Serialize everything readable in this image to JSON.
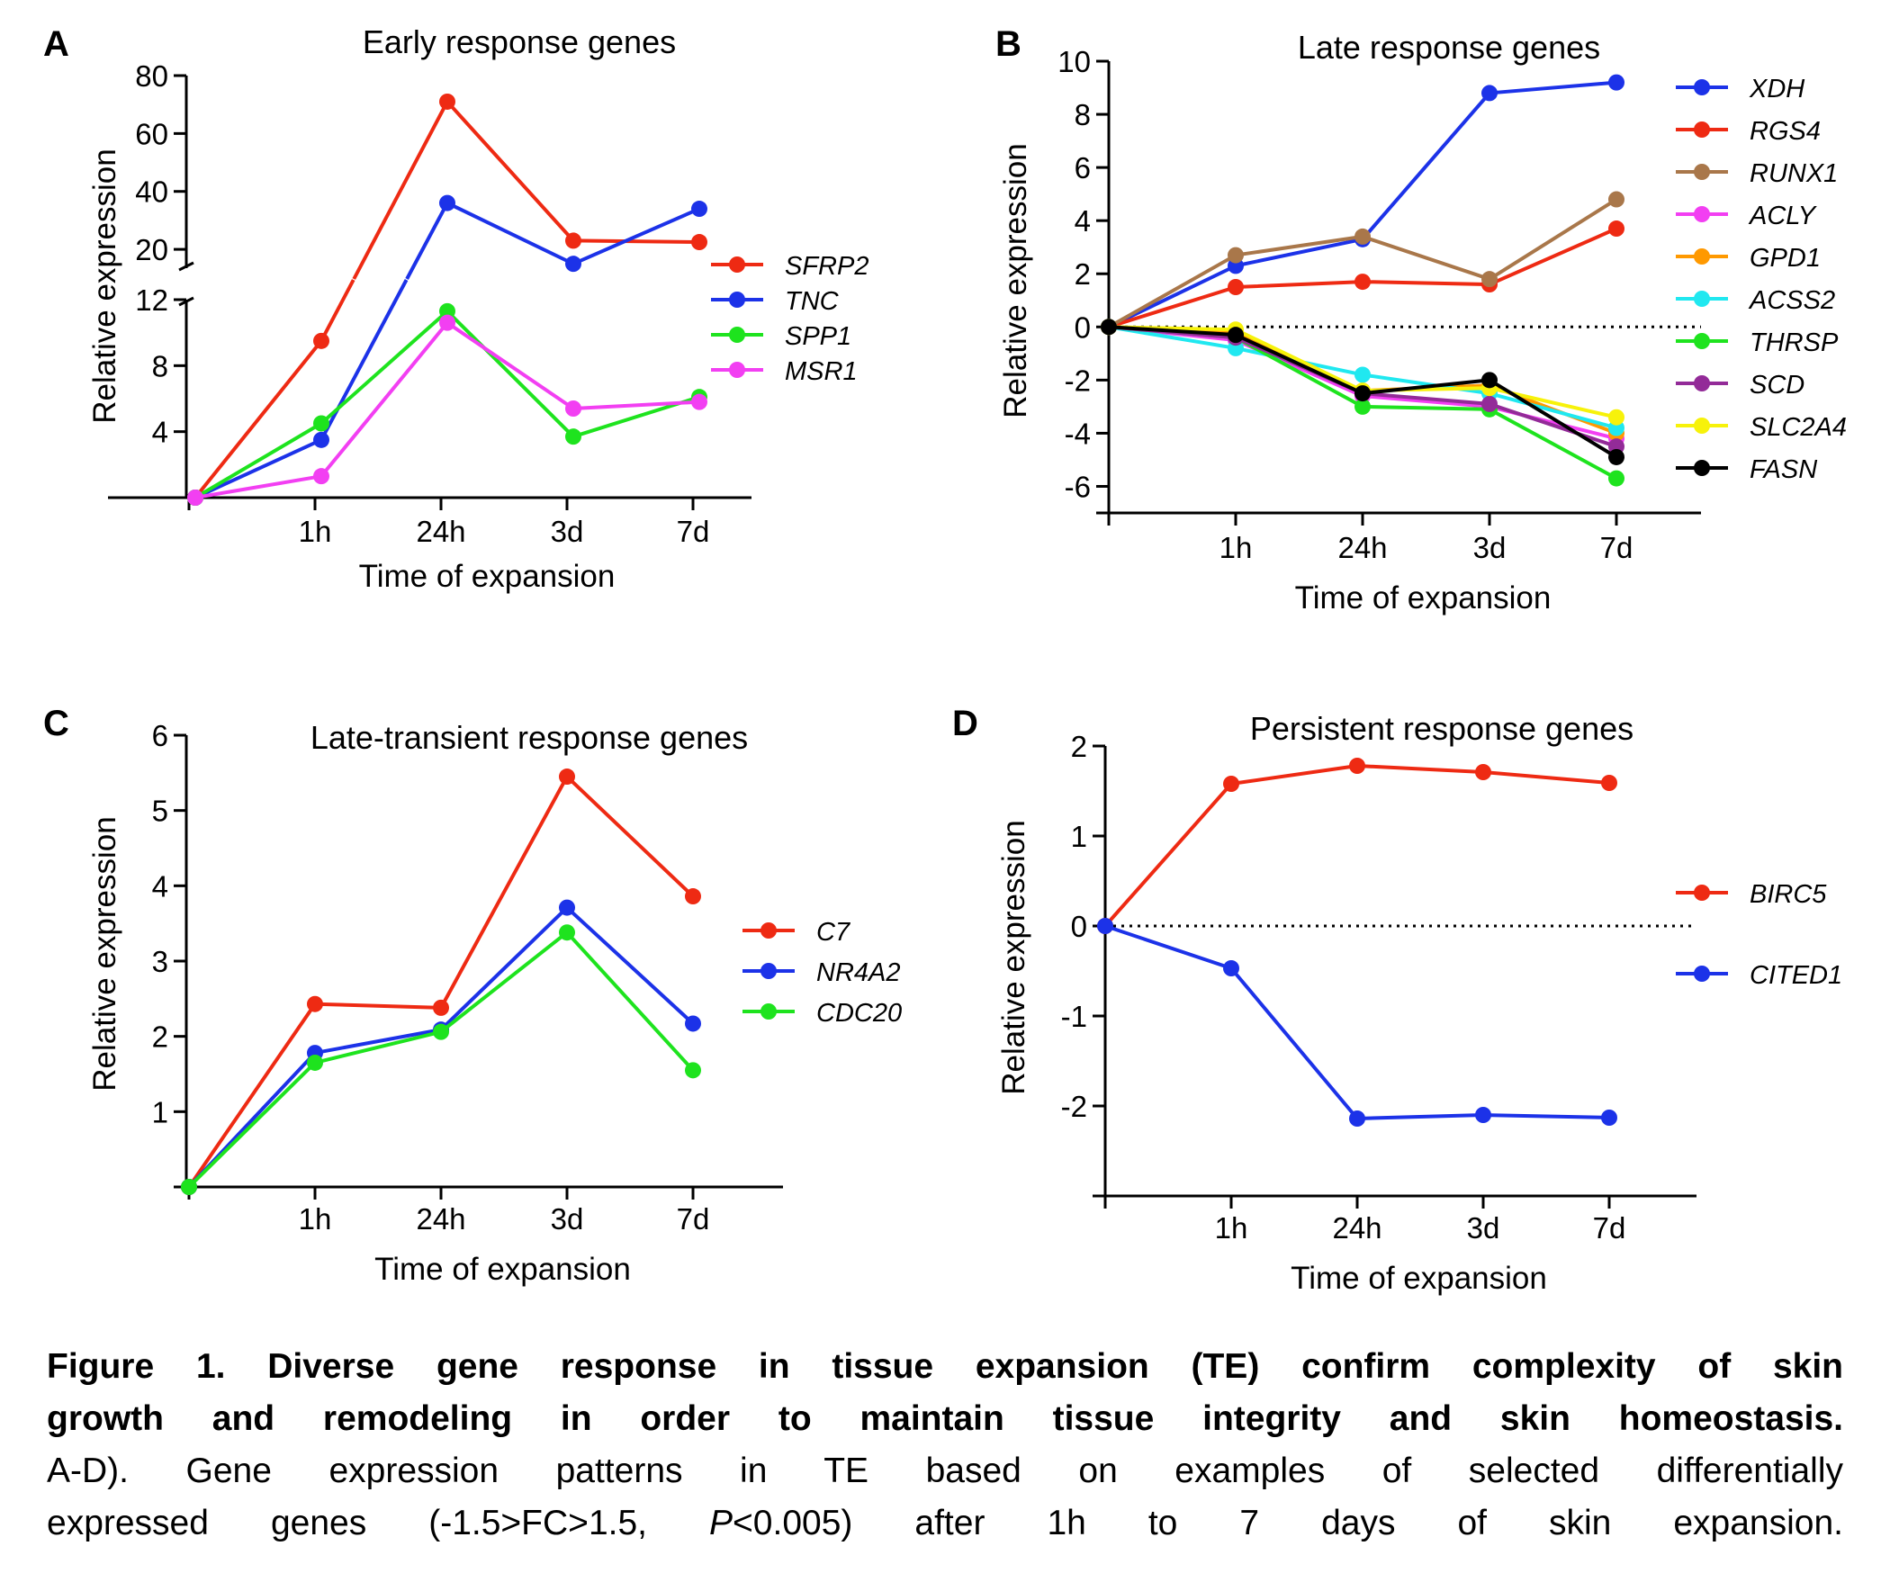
{
  "chart_data": [
    {
      "panel_label": "A",
      "type": "line",
      "title": "Early response genes",
      "xlabel": "Time of expansion",
      "ylabel": "Relative expression",
      "categories": [
        "",
        "1h",
        "24h",
        "3d",
        "7d"
      ],
      "broken_axis": true,
      "ylim_lower": [
        0,
        12
      ],
      "ylim_upper": [
        15,
        80
      ],
      "yticks_lower": [
        "4",
        "8",
        "12"
      ],
      "yticks_upper": [
        "20",
        "40",
        "60",
        "80"
      ],
      "legend_position": "right",
      "series": [
        {
          "name": "SFRP2",
          "color": "#ee2a13",
          "values": [
            0,
            9.5,
            71,
            23,
            22.5
          ],
          "break_gap": [
            1,
            2
          ]
        },
        {
          "name": "TNC",
          "color": "#1c32e8",
          "values": [
            0,
            3.5,
            36,
            15,
            34
          ],
          "break_gap": [
            1,
            2
          ]
        },
        {
          "name": "SPP1",
          "color": "#1ee31e",
          "values": [
            0,
            4.5,
            11.3,
            3.7,
            6.1
          ]
        },
        {
          "name": "MSR1",
          "color": "#f23ff2",
          "values": [
            0,
            1.3,
            10.6,
            5.4,
            5.8
          ]
        }
      ]
    },
    {
      "panel_label": "B",
      "type": "line",
      "title": "Late response genes",
      "xlabel": "Time of expansion",
      "ylabel": "Relative expression",
      "categories": [
        "",
        "1h",
        "24h",
        "3d",
        "7d"
      ],
      "ylim": [
        -7,
        10
      ],
      "yticks": [
        "-6",
        "-4",
        "-2",
        "0",
        "2",
        "4",
        "6",
        "8",
        "10"
      ],
      "zero_line": true,
      "legend_position": "right",
      "series": [
        {
          "name": "XDH",
          "color": "#1c32e8",
          "values": [
            0,
            2.3,
            3.3,
            8.8,
            9.2
          ]
        },
        {
          "name": "RGS4",
          "color": "#ee2a13",
          "values": [
            0,
            1.5,
            1.7,
            1.6,
            3.7
          ]
        },
        {
          "name": "RUNX1",
          "color": "#a9774a",
          "values": [
            0,
            2.7,
            3.4,
            1.8,
            4.8
          ]
        },
        {
          "name": "ACLY",
          "color": "#f23ff2",
          "values": [
            0,
            -0.5,
            -2.6,
            -3.0,
            -4.2
          ]
        },
        {
          "name": "GPD1",
          "color": "#ff9900",
          "values": [
            0,
            -0.2,
            -2.4,
            -2.2,
            -4.0
          ]
        },
        {
          "name": "ACSS2",
          "color": "#20e8f0",
          "values": [
            0,
            -0.8,
            -1.8,
            -2.5,
            -3.8
          ]
        },
        {
          "name": "THRSP",
          "color": "#1ee31e",
          "values": [
            0,
            -0.4,
            -3.0,
            -3.1,
            -5.7
          ]
        },
        {
          "name": "SCD",
          "color": "#932b98",
          "values": [
            0,
            -0.4,
            -2.5,
            -2.9,
            -4.5
          ]
        },
        {
          "name": "SLC2A4",
          "color": "#f7f20a",
          "values": [
            0,
            -0.1,
            -2.4,
            -2.3,
            -3.4
          ]
        },
        {
          "name": "FASN",
          "color": "#000000",
          "values": [
            0,
            -0.3,
            -2.5,
            -2.0,
            -4.9
          ]
        }
      ]
    },
    {
      "panel_label": "C",
      "type": "line",
      "title": "Late-transient response genes",
      "xlabel": "Time of expansion",
      "ylabel": "Relative expression",
      "categories": [
        "",
        "1h",
        "24h",
        "3d",
        "7d"
      ],
      "ylim": [
        0,
        6
      ],
      "yticks": [
        "1",
        "2",
        "3",
        "4",
        "5",
        "6"
      ],
      "legend_position": "right",
      "series": [
        {
          "name": "C7",
          "color": "#ee2a13",
          "values": [
            0,
            2.43,
            2.38,
            5.45,
            3.86
          ]
        },
        {
          "name": "NR4A2",
          "color": "#1c32e8",
          "values": [
            0,
            1.78,
            2.09,
            3.71,
            2.17
          ]
        },
        {
          "name": "CDC20",
          "color": "#1ee31e",
          "values": [
            0,
            1.65,
            2.06,
            3.38,
            1.55
          ]
        }
      ]
    },
    {
      "panel_label": "D",
      "type": "line",
      "title": "Persistent response genes",
      "xlabel": "Time of expansion",
      "ylabel": "Relative expression",
      "categories": [
        "",
        "1h",
        "24h",
        "3d",
        "7d"
      ],
      "ylim": [
        -3,
        2
      ],
      "yticks": [
        "-2",
        "-1",
        "0",
        "1",
        "2"
      ],
      "zero_line": true,
      "legend_position": "right",
      "series": [
        {
          "name": "BIRC5",
          "color": "#ee2a13",
          "values": [
            0,
            1.58,
            1.78,
            1.71,
            1.59
          ]
        },
        {
          "name": "CITED1",
          "color": "#1c32e8",
          "values": [
            0,
            -0.47,
            -2.14,
            -2.1,
            -2.13
          ]
        }
      ]
    }
  ],
  "caption": {
    "title_line1": "Figure 1. Diverse gene response in tissue expansion (TE) confirm complexity of skin",
    "title_line2": "growth and remodeling in order to maintain tissue integrity and skin homeostasis.",
    "body_line1": "A-D). Gene expression patterns in TE based on examples of selected differentially",
    "body_line2_a": "expressed genes (-1.5>FC>1.5, ",
    "body_line2_p": "P",
    "body_line2_b": "<0.005) after 1h to 7 days of skin expansion."
  }
}
